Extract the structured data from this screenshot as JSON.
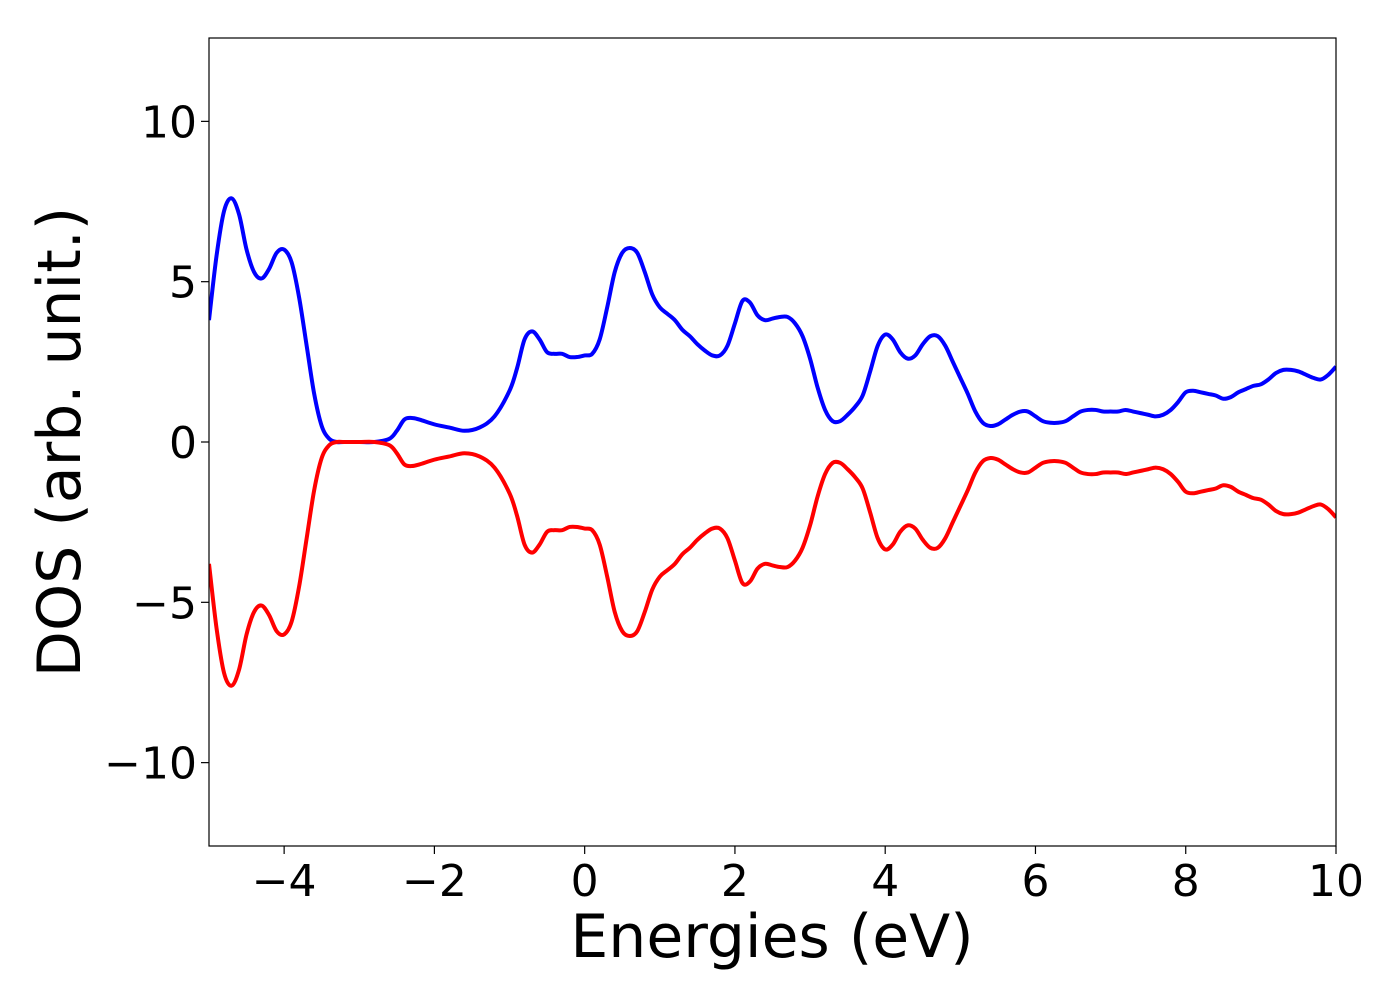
{
  "chart_data": {
    "type": "line",
    "title": "",
    "xlabel": "Energies (eV)",
    "ylabel": "DOS (arb. unit.)",
    "xlim": [
      -5,
      10
    ],
    "ylim": [
      -12.6,
      12.6
    ],
    "xticks": [
      -4,
      -2,
      0,
      2,
      4,
      6,
      8,
      10
    ],
    "xtick_labels": [
      "−4",
      "−2",
      "0",
      "2",
      "4",
      "6",
      "8",
      "10"
    ],
    "yticks": [
      -10,
      -5,
      0,
      5,
      10
    ],
    "ytick_labels": [
      "−10",
      "−5",
      "0",
      "5",
      "10"
    ],
    "grid": false,
    "legend": "none",
    "series": [
      {
        "color": "#0000ff",
        "x": [
          -5.0,
          -4.9,
          -4.8,
          -4.7,
          -4.6,
          -4.5,
          -4.4,
          -4.3,
          -4.2,
          -4.1,
          -4.0,
          -3.9,
          -3.8,
          -3.7,
          -3.6,
          -3.5,
          -3.4,
          -3.3,
          -3.2,
          -3.0,
          -2.8,
          -2.6,
          -2.5,
          -2.4,
          -2.3,
          -2.2,
          -2.0,
          -1.8,
          -1.6,
          -1.4,
          -1.2,
          -1.0,
          -0.9,
          -0.8,
          -0.7,
          -0.6,
          -0.5,
          -0.4,
          -0.3,
          -0.2,
          -0.1,
          0.0,
          0.1,
          0.2,
          0.3,
          0.4,
          0.5,
          0.6,
          0.7,
          0.8,
          0.9,
          1.0,
          1.1,
          1.2,
          1.3,
          1.4,
          1.5,
          1.6,
          1.7,
          1.8,
          1.9,
          2.0,
          2.1,
          2.2,
          2.3,
          2.4,
          2.5,
          2.6,
          2.7,
          2.8,
          2.9,
          3.0,
          3.1,
          3.2,
          3.3,
          3.4,
          3.5,
          3.6,
          3.7,
          3.8,
          3.9,
          4.0,
          4.1,
          4.2,
          4.3,
          4.4,
          4.5,
          4.6,
          4.7,
          4.8,
          4.9,
          5.0,
          5.1,
          5.2,
          5.3,
          5.4,
          5.5,
          5.6,
          5.7,
          5.8,
          5.9,
          6.0,
          6.1,
          6.2,
          6.3,
          6.4,
          6.5,
          6.6,
          6.7,
          6.8,
          6.9,
          7.0,
          7.1,
          7.2,
          7.3,
          7.4,
          7.5,
          7.6,
          7.7,
          7.8,
          7.9,
          8.0,
          8.1,
          8.2,
          8.3,
          8.4,
          8.5,
          8.6,
          8.7,
          8.8,
          8.9,
          9.0,
          9.1,
          9.2,
          9.3,
          9.4,
          9.5,
          9.6,
          9.7,
          9.8,
          9.9,
          10.0
        ],
        "y": [
          3.8,
          5.8,
          7.2,
          7.6,
          7.1,
          6.0,
          5.3,
          5.1,
          5.4,
          5.9,
          6.0,
          5.6,
          4.5,
          3.0,
          1.5,
          0.5,
          0.1,
          0.0,
          0.0,
          0.0,
          0.0,
          0.1,
          0.35,
          0.7,
          0.75,
          0.7,
          0.55,
          0.45,
          0.35,
          0.45,
          0.8,
          1.6,
          2.3,
          3.2,
          3.45,
          3.2,
          2.8,
          2.75,
          2.75,
          2.65,
          2.65,
          2.7,
          2.75,
          3.2,
          4.2,
          5.3,
          5.9,
          6.05,
          5.9,
          5.3,
          4.6,
          4.2,
          4.0,
          3.8,
          3.5,
          3.3,
          3.05,
          2.85,
          2.7,
          2.7,
          3.0,
          3.7,
          4.4,
          4.35,
          3.95,
          3.8,
          3.85,
          3.9,
          3.9,
          3.7,
          3.3,
          2.6,
          1.7,
          1.0,
          0.65,
          0.65,
          0.85,
          1.1,
          1.45,
          2.2,
          3.0,
          3.35,
          3.2,
          2.8,
          2.6,
          2.7,
          3.05,
          3.3,
          3.3,
          3.0,
          2.5,
          2.0,
          1.5,
          0.95,
          0.6,
          0.5,
          0.55,
          0.7,
          0.85,
          0.95,
          0.95,
          0.8,
          0.65,
          0.6,
          0.6,
          0.65,
          0.8,
          0.95,
          1.0,
          1.0,
          0.95,
          0.95,
          0.95,
          1.0,
          0.95,
          0.9,
          0.85,
          0.8,
          0.85,
          1.0,
          1.25,
          1.55,
          1.6,
          1.55,
          1.5,
          1.45,
          1.35,
          1.4,
          1.55,
          1.65,
          1.75,
          1.8,
          1.95,
          2.15,
          2.25,
          2.25,
          2.2,
          2.1,
          2.0,
          1.95,
          2.1,
          2.35
        ]
      },
      {
        "color": "#ff0000",
        "mirror_of_series": 0
      }
    ]
  },
  "colors": {
    "spin_up": "#0000ff",
    "spin_down": "#ff0000",
    "axes": "#000000"
  }
}
